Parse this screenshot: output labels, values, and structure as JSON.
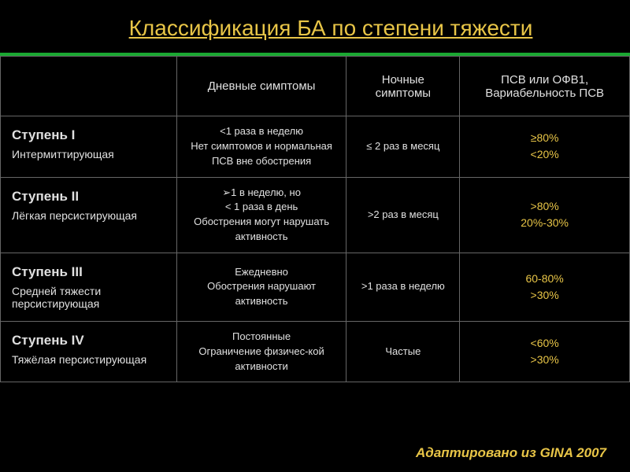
{
  "title": "Классификация БА по степени тяжести",
  "headers": {
    "stage": "",
    "day": "Дневные симптомы",
    "night": "Ночные симптомы",
    "psv": "ПСВ или ОФВ1, Вариабельность ПСВ"
  },
  "rows": [
    {
      "stage_title": "Ступень I",
      "stage_sub": "Интермиттирующая",
      "day_l1": "<1 раза в неделю",
      "day_l2": "Нет симптомов и нормальная ПСВ вне обострения",
      "night": "≤ 2 раз в месяц",
      "psv_l1": "≥80%",
      "psv_l2": "<20%"
    },
    {
      "stage_title": "Ступень II",
      "stage_sub": "Лёгкая персистирующая",
      "day_l1": "➢1 в неделю, но",
      "day_l2": "< 1 раза в день",
      "day_l3": "Обострения могут нарушать активность",
      "night": ">2 раз в месяц",
      "psv_l1": ">80%",
      "psv_l2": "20%-30%"
    },
    {
      "stage_title": "Ступень III",
      "stage_sub": "Средней тяжести персистирующая",
      "day_l1": "Ежедневно",
      "day_l2": "Обострения нарушают активность",
      "night": ">1 раза в неделю",
      "psv_l1": "60-80%",
      "psv_l2": ">30%"
    },
    {
      "stage_title": "Ступень IV",
      "stage_sub": "Тяжёлая персистирующая",
      "day_l1": "Постоянные",
      "day_l2": "Ограничение физичес-кой активности",
      "night": "Частые",
      "psv_l1": "<60%",
      "psv_l2": ">30%"
    }
  ],
  "footer": "Адаптировано из GINA 2007"
}
